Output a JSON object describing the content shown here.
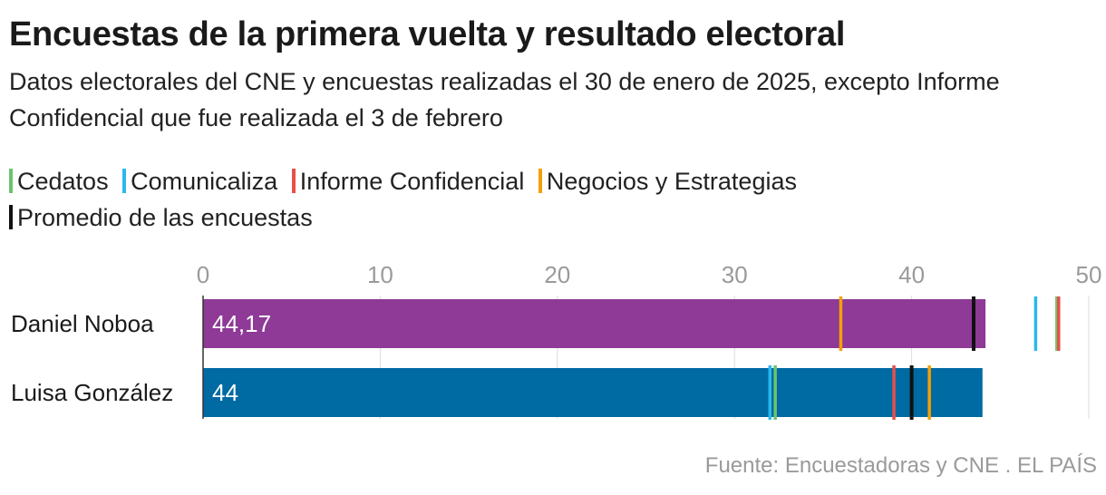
{
  "title": "Encuestas de la primera vuelta y resultado electoral",
  "subtitle": "Datos electorales del CNE y encuestas realizadas el 30 de enero de 2025, excepto Informe Confidencial que fue realizada el 3 de febrero",
  "source": "Fuente: Encuestadoras y CNE . EL PAÍS",
  "chart_data": {
    "type": "bar",
    "orientation": "horizontal",
    "title": "Encuestas de la primera vuelta y resultado electoral",
    "subtitle": "Datos electorales del CNE y encuestas realizadas el 30 de enero de 2025, excepto Informe Confidencial que fue realizada el 3 de febrero",
    "xlim": [
      0,
      50
    ],
    "x_ticks": [
      0,
      10,
      20,
      30,
      40,
      50
    ],
    "x_tick_labels": [
      "0",
      "10",
      "20",
      "30",
      "40",
      "50"
    ],
    "grid": true,
    "legend_position": "top",
    "categories": [
      "Daniel Noboa",
      "Luisa González"
    ],
    "values": [
      44.17,
      44
    ],
    "value_labels": [
      "44,17",
      "44"
    ],
    "bar_colors": [
      "#8e3a96",
      "#006aa3"
    ],
    "markers": [
      {
        "name": "Cedatos",
        "color": "#6cc46c",
        "values": [
          48.2,
          32.3
        ]
      },
      {
        "name": "Comunicaliza",
        "color": "#2bb8ee",
        "values": [
          47.0,
          32.0
        ]
      },
      {
        "name": "Informe Confidencial",
        "color": "#e8504a",
        "values": [
          48.3,
          39.0
        ]
      },
      {
        "name": "Negocios y Estrategias",
        "color": "#f5a000",
        "values": [
          36.0,
          41.0
        ]
      },
      {
        "name": "Promedio de las encuestas",
        "color": "#111111",
        "values": [
          43.5,
          40.0
        ]
      }
    ]
  }
}
